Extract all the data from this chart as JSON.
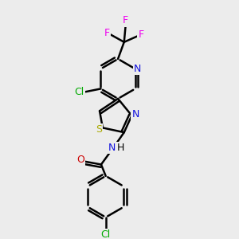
{
  "background_color": "#ececec",
  "bond_color": "#000000",
  "bond_width": 1.8,
  "figsize": [
    3.0,
    3.0
  ],
  "dpi": 100,
  "colors": {
    "N": "#1010dd",
    "S": "#aaaa00",
    "Cl": "#00aa00",
    "O": "#cc0000",
    "F": "#ee00ee",
    "H": "#000000",
    "C": "#000000"
  }
}
